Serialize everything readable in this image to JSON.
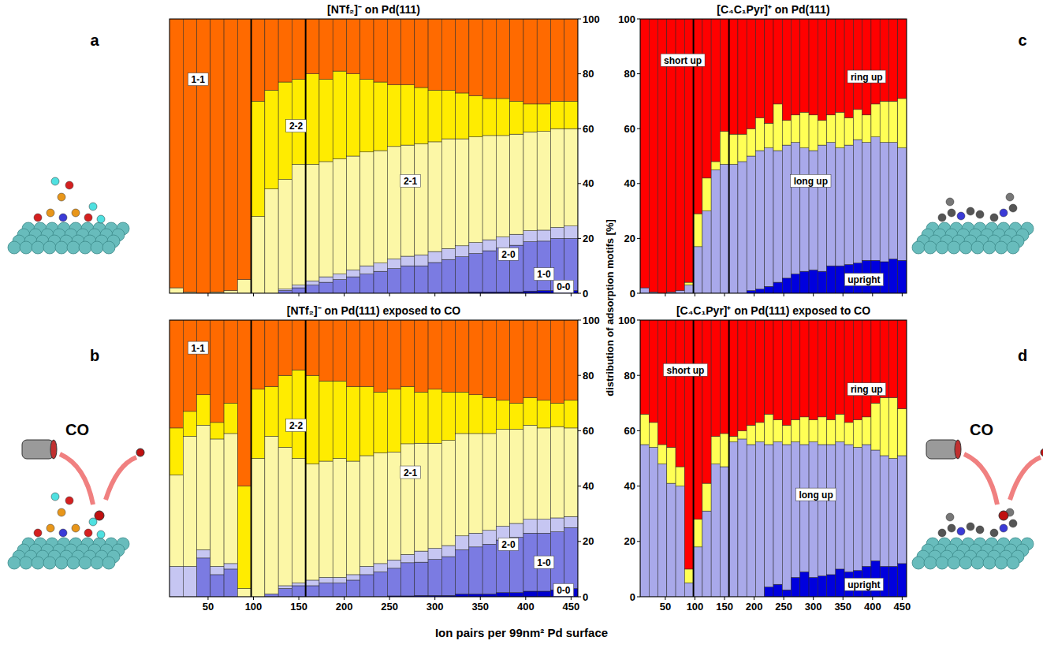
{
  "figure": {
    "xlabel": "Ion pairs per 99nm² Pd surface",
    "ylabel": "distribution of adsorption motifs [%]"
  },
  "chart_data": [
    {
      "type": "bar",
      "stacked": true,
      "title": "[NTf₂]⁻ on Pd(111)",
      "label": "a",
      "tick_labels": "y",
      "x": [
        15,
        30,
        45,
        60,
        75,
        90,
        105,
        120,
        135,
        150,
        165,
        180,
        195,
        210,
        225,
        240,
        255,
        270,
        285,
        300,
        315,
        330,
        345,
        360,
        375,
        390,
        405,
        420,
        435,
        450
      ],
      "xlim": [
        7.5,
        457.5
      ],
      "xticks": [
        50,
        100,
        150,
        200,
        250,
        300,
        350,
        400,
        450
      ],
      "ylim": [
        0,
        100
      ],
      "yticks": [
        0,
        20,
        40,
        60,
        80,
        100
      ],
      "vlines": [
        97.5,
        157.5
      ],
      "series": [
        {
          "name": "0-0",
          "color": "#0000cc",
          "values": [
            0,
            0,
            0,
            0,
            0,
            0,
            0,
            0,
            0,
            0,
            0,
            0,
            0,
            0,
            0,
            0,
            0,
            0,
            0,
            0.2,
            0.3,
            0.3,
            0.5,
            0.5,
            0.5,
            0.5,
            0.8,
            1,
            1,
            1
          ]
        },
        {
          "name": "1-0",
          "color": "#7b7be2",
          "values": [
            0,
            0,
            0,
            0,
            0,
            0,
            0,
            0,
            1,
            2,
            3,
            4,
            5,
            6,
            7,
            8,
            9,
            10,
            10,
            11,
            12,
            13,
            14,
            15,
            16,
            17,
            18,
            18,
            19,
            19
          ]
        },
        {
          "name": "2-0",
          "color": "#c6c6f2",
          "values": [
            0,
            0,
            0,
            0,
            0,
            0,
            0,
            0,
            0.5,
            1,
            1.5,
            2,
            2,
            2.5,
            3,
            3,
            3.5,
            3.5,
            4,
            4,
            4,
            4,
            4,
            4,
            4,
            4,
            4,
            4,
            4,
            4.5
          ]
        },
        {
          "name": "2-1",
          "color": "#fcf7a6",
          "values": [
            2,
            0.5,
            0,
            0.5,
            1,
            5,
            28,
            38,
            40,
            44,
            42.5,
            42,
            42,
            41.5,
            41.5,
            41,
            41,
            40.5,
            40.5,
            40,
            40,
            39,
            38.5,
            38,
            37,
            36.5,
            36,
            36,
            36,
            35.5
          ]
        },
        {
          "name": "2-2",
          "color": "#ffec00",
          "values": [
            0,
            0,
            0,
            0,
            0,
            0,
            42,
            36,
            35.5,
            31,
            33,
            30,
            32,
            30,
            26.5,
            25,
            22.5,
            22,
            20.5,
            18.8,
            17.7,
            16.7,
            15,
            13.5,
            13.5,
            12,
            10.2,
            10,
            10,
            10
          ]
        },
        {
          "name": "1-1",
          "color": "#ff6a00",
          "values": [
            98,
            99.5,
            100,
            99.5,
            99,
            95,
            30,
            26,
            23,
            22,
            20,
            22,
            19,
            20,
            22,
            23,
            24,
            24,
            25,
            26,
            26,
            27,
            28,
            29,
            29,
            30,
            31,
            31,
            30,
            30
          ]
        }
      ]
    },
    {
      "type": "bar",
      "stacked": true,
      "title": "[NTf₂]⁻ on Pd(111) exposed to CO",
      "label": "b",
      "annotation": "CO",
      "tick_labels": true,
      "x": [
        15,
        30,
        45,
        60,
        75,
        90,
        105,
        120,
        135,
        150,
        165,
        180,
        195,
        210,
        225,
        240,
        255,
        270,
        285,
        300,
        315,
        330,
        345,
        360,
        375,
        390,
        405,
        420,
        435,
        450
      ],
      "xlim": [
        7.5,
        457.5
      ],
      "xticks": [
        50,
        100,
        150,
        200,
        250,
        300,
        350,
        400,
        450
      ],
      "ylim": [
        0,
        100
      ],
      "yticks": [
        0,
        20,
        40,
        60,
        80,
        100
      ],
      "vlines": [
        97.5,
        157.5
      ],
      "series": [
        {
          "name": "0-0",
          "color": "#0000cc",
          "values": [
            0,
            0,
            0,
            0,
            0,
            0,
            0,
            0,
            0,
            0,
            0,
            0,
            0,
            0,
            0,
            0,
            0.3,
            0.3,
            0.5,
            0.5,
            0.5,
            1,
            1,
            1,
            1.5,
            1.5,
            2,
            2,
            2.5,
            3
          ]
        },
        {
          "name": "1-0",
          "color": "#7b7be2",
          "values": [
            0,
            0,
            14,
            8,
            10,
            0,
            0,
            1,
            3,
            4,
            4,
            5,
            5,
            6,
            8,
            9,
            10,
            12,
            12,
            13,
            14,
            16,
            17,
            18,
            19,
            20,
            21,
            21,
            21,
            22
          ]
        },
        {
          "name": "2-0",
          "color": "#c6c6f2",
          "values": [
            11,
            11,
            3,
            3,
            2,
            0,
            0,
            0,
            1,
            1,
            2,
            2,
            2,
            2,
            3,
            3,
            3,
            3,
            4,
            4,
            4,
            5,
            5,
            5,
            5,
            5,
            5,
            5,
            5,
            4
          ]
        },
        {
          "name": "2-1",
          "color": "#fcf7a6",
          "values": [
            33,
            47,
            45,
            46,
            47,
            3,
            50,
            57,
            50,
            45,
            42,
            42,
            43,
            41,
            40,
            40,
            39,
            40,
            39,
            38,
            38,
            37,
            36,
            35,
            35,
            34,
            34,
            33,
            33,
            32
          ]
        },
        {
          "name": "2-2",
          "color": "#ffec00",
          "values": [
            17,
            9,
            11,
            6,
            11,
            37,
            25,
            18,
            26,
            32,
            32,
            29,
            28,
            27,
            25,
            22,
            22.7,
            20.7,
            18.5,
            19.5,
            17.5,
            15,
            14,
            13,
            10.5,
            9.5,
            10,
            10,
            8.5,
            10
          ]
        },
        {
          "name": "1-1",
          "color": "#ff6a00",
          "values": [
            39,
            33,
            27,
            37,
            30,
            60,
            25,
            24,
            20,
            18,
            20,
            22,
            22,
            24,
            24,
            26,
            25,
            24,
            26,
            25,
            26,
            26,
            27,
            28,
            29,
            30,
            28,
            29,
            30,
            29
          ]
        }
      ]
    },
    {
      "type": "bar",
      "stacked": true,
      "title": "[C₄C₁Pyr]⁺ on Pd(111)",
      "label": "c",
      "tick_labels": "y",
      "x": [
        15,
        30,
        45,
        60,
        75,
        90,
        105,
        120,
        135,
        150,
        165,
        180,
        195,
        210,
        225,
        240,
        255,
        270,
        285,
        300,
        315,
        330,
        345,
        360,
        375,
        390,
        405,
        420,
        435,
        450
      ],
      "xlim": [
        7.5,
        457.5
      ],
      "xticks": [
        50,
        100,
        150,
        200,
        250,
        300,
        350,
        400,
        450
      ],
      "ylim": [
        0,
        100
      ],
      "yticks": [
        0,
        20,
        40,
        60,
        80,
        100
      ],
      "vlines": [
        97.5,
        157.5
      ],
      "series": [
        {
          "name": "upright",
          "color": "#0000dd",
          "values": [
            0,
            0,
            0,
            0,
            0,
            0,
            0,
            0,
            0,
            0,
            0,
            0,
            1,
            1.5,
            2.5,
            4,
            5.5,
            7,
            8,
            8.5,
            8,
            10,
            10,
            10.5,
            11,
            12,
            12,
            11.5,
            12.5,
            12
          ]
        },
        {
          "name": "long up",
          "color": "#a9a9ea",
          "values": [
            2,
            0.5,
            0,
            0.5,
            1,
            3,
            17,
            30,
            45,
            47,
            47,
            48,
            49,
            50.5,
            50.5,
            48,
            48.5,
            48,
            45,
            43.5,
            46,
            45,
            43,
            43.5,
            45,
            43,
            45,
            43.5,
            42.5,
            41
          ]
        },
        {
          "name": "ring up",
          "color": "#ffff55",
          "values": [
            0,
            0,
            0,
            0,
            0,
            1,
            12,
            12,
            3,
            12,
            11,
            10,
            10,
            12,
            9,
            17,
            9,
            10,
            13,
            13,
            9,
            10,
            13,
            10,
            11,
            10,
            12,
            15,
            15,
            18
          ]
        },
        {
          "name": "short up",
          "color": "#ff0000",
          "values": [
            98,
            99.5,
            100,
            99.5,
            99,
            96,
            71,
            58,
            52,
            41,
            42,
            42,
            40,
            36,
            38,
            31,
            37,
            35,
            34,
            35,
            37,
            35,
            34,
            36,
            33,
            35,
            31,
            30,
            30,
            29
          ]
        }
      ]
    },
    {
      "type": "bar",
      "stacked": true,
      "title": "[C₄C₁Pyr]⁺ on Pd(111) exposed to CO",
      "label": "d",
      "annotation": "CO",
      "tick_labels": true,
      "x": [
        15,
        30,
        45,
        60,
        75,
        90,
        105,
        120,
        135,
        150,
        165,
        180,
        195,
        210,
        225,
        240,
        255,
        270,
        285,
        300,
        315,
        330,
        345,
        360,
        375,
        390,
        405,
        420,
        435,
        450
      ],
      "xlim": [
        7.5,
        457.5
      ],
      "xticks": [
        50,
        100,
        150,
        200,
        250,
        300,
        350,
        400,
        450
      ],
      "ylim": [
        0,
        100
      ],
      "yticks": [
        0,
        20,
        40,
        60,
        80,
        100
      ],
      "vlines": [
        97.5,
        157.5
      ],
      "series": [
        {
          "name": "upright",
          "color": "#0000dd",
          "values": [
            0,
            0,
            0,
            0,
            0,
            0,
            0,
            0,
            0,
            0,
            0,
            0,
            0,
            0,
            3.5,
            4.5,
            2.5,
            7,
            9,
            7,
            7.5,
            8,
            10,
            9,
            9.5,
            11,
            13,
            11,
            11,
            12
          ]
        },
        {
          "name": "long up",
          "color": "#a9a9ea",
          "values": [
            55,
            54,
            48,
            41,
            40,
            5,
            18,
            31,
            48,
            47,
            56,
            57,
            55,
            56,
            51.5,
            51.5,
            52.5,
            49,
            46,
            49,
            47.5,
            47,
            46,
            46,
            44.5,
            44,
            40,
            40,
            39,
            39
          ]
        },
        {
          "name": "ring up",
          "color": "#ffff55",
          "values": [
            11,
            9,
            7,
            13,
            7,
            5,
            10,
            10,
            10,
            12,
            2,
            3,
            7,
            7,
            11,
            8,
            7,
            8,
            10,
            8,
            10,
            9,
            10,
            8,
            10,
            10,
            17,
            21,
            22,
            17
          ]
        },
        {
          "name": "short up",
          "color": "#ff0000",
          "values": [
            34,
            37,
            45,
            46,
            53,
            90,
            72,
            59,
            42,
            41,
            42,
            40,
            38,
            37,
            34,
            36,
            38,
            36,
            35,
            36,
            35,
            36,
            34,
            37,
            36,
            35,
            30,
            28,
            28,
            32
          ]
        }
      ]
    }
  ]
}
